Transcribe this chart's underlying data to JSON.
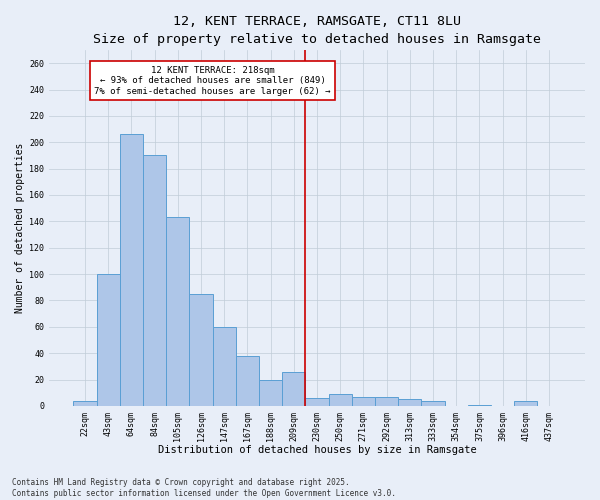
{
  "title": "12, KENT TERRACE, RAMSGATE, CT11 8LU",
  "subtitle": "Size of property relative to detached houses in Ramsgate",
  "xlabel": "Distribution of detached houses by size in Ramsgate",
  "ylabel": "Number of detached properties",
  "bar_labels": [
    "22sqm",
    "43sqm",
    "64sqm",
    "84sqm",
    "105sqm",
    "126sqm",
    "147sqm",
    "167sqm",
    "188sqm",
    "209sqm",
    "230sqm",
    "250sqm",
    "271sqm",
    "292sqm",
    "313sqm",
    "333sqm",
    "354sqm",
    "375sqm",
    "396sqm",
    "416sqm",
    "437sqm"
  ],
  "bar_values": [
    4,
    100,
    206,
    190,
    143,
    85,
    60,
    38,
    20,
    26,
    6,
    9,
    7,
    7,
    5,
    4,
    0,
    1,
    0,
    4,
    0
  ],
  "bar_color": "#aec6e8",
  "bar_edge_color": "#5a9fd4",
  "vline_x": 9.5,
  "vline_color": "#cc0000",
  "annotation_text": "12 KENT TERRACE: 218sqm\n← 93% of detached houses are smaller (849)\n7% of semi-detached houses are larger (62) →",
  "annotation_box_color": "#ffffff",
  "annotation_box_edge": "#cc0000",
  "ylim": [
    0,
    270
  ],
  "yticks": [
    0,
    20,
    40,
    60,
    80,
    100,
    120,
    140,
    160,
    180,
    200,
    220,
    240,
    260
  ],
  "bg_color": "#e8eef8",
  "footer": "Contains HM Land Registry data © Crown copyright and database right 2025.\nContains public sector information licensed under the Open Government Licence v3.0.",
  "title_fontsize": 9.5,
  "subtitle_fontsize": 8,
  "xlabel_fontsize": 7.5,
  "ylabel_fontsize": 7,
  "tick_fontsize": 6,
  "annotation_fontsize": 6.5,
  "footer_fontsize": 5.5
}
